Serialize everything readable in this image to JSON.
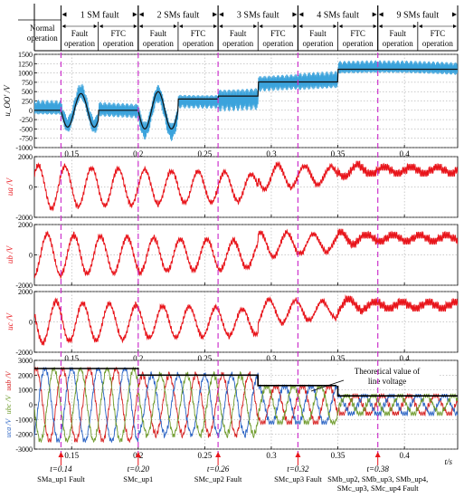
{
  "figure": {
    "phases": [
      {
        "id": "normal",
        "top": "Normal",
        "bottom": "operation",
        "x0": 0.122,
        "x1": 0.142
      },
      {
        "id": "fault1",
        "top": "Fault",
        "bottom": "operation",
        "x0": 0.142,
        "x1": 0.17
      },
      {
        "id": "ftc1",
        "top": "FTC",
        "bottom": "operation",
        "x0": 0.17,
        "x1": 0.2
      },
      {
        "id": "fault2",
        "top": "Fault",
        "bottom": "operation",
        "x0": 0.2,
        "x1": 0.23
      },
      {
        "id": "ftc2",
        "top": "FTC",
        "bottom": "operation",
        "x0": 0.23,
        "x1": 0.26
      },
      {
        "id": "fault3",
        "top": "Fault",
        "bottom": "operation",
        "x0": 0.26,
        "x1": 0.29
      },
      {
        "id": "ftc3",
        "top": "FTC",
        "bottom": "operation",
        "x0": 0.29,
        "x1": 0.32
      },
      {
        "id": "fault4",
        "top": "Fault",
        "bottom": "operation",
        "x0": 0.32,
        "x1": 0.35
      },
      {
        "id": "ftc4",
        "top": "FTC",
        "bottom": "operation",
        "x0": 0.35,
        "x1": 0.38
      },
      {
        "id": "fault9",
        "top": "Fault",
        "bottom": "operation",
        "x0": 0.38,
        "x1": 0.41
      },
      {
        "id": "ftc9",
        "top": "FTC",
        "bottom": "operation",
        "x0": 0.41,
        "x1": 0.44
      }
    ],
    "fault_groups": [
      {
        "label": "1 SM fault",
        "x0": 0.142,
        "x1": 0.2
      },
      {
        "label": "2 SMs fault",
        "x0": 0.2,
        "x1": 0.26
      },
      {
        "label": "3 SMs fault",
        "x0": 0.26,
        "x1": 0.32
      },
      {
        "label": "4 SMs fault",
        "x0": 0.32,
        "x1": 0.38
      },
      {
        "label": "9 SMs fault",
        "x0": 0.38,
        "x1": 0.44
      }
    ],
    "fault_event_lines": [
      0.142,
      0.2,
      0.26,
      0.32,
      0.38
    ],
    "ftc_lines": [
      0.17,
      0.23,
      0.29,
      0.35,
      0.41
    ],
    "annotations": [
      {
        "t": 0.14,
        "time": "t=0.14",
        "lines": [
          "SM",
          "a_up1",
          " Fault"
        ]
      },
      {
        "t": 0.2,
        "time": "t=0.20",
        "lines": [
          "SM",
          "c_up1",
          ""
        ]
      },
      {
        "t": 0.26,
        "time": "t=0.26",
        "lines": [
          "SM",
          "c_up2",
          " Fault"
        ]
      },
      {
        "t": 0.32,
        "time": "t=0.32",
        "lines": [
          "SM",
          "c_up3",
          " Fault"
        ]
      },
      {
        "t": 0.38,
        "time": "t=0.38",
        "lines": [
          "SM_b_up2, SM_b_up3, SM_b_up4,",
          "SM_c_up3, SM_c_up4 Fault"
        ]
      }
    ],
    "ann_text": {
      "t014": "t=0.14",
      "t020": "t=0.20",
      "t026": "t=0.26",
      "t032": "t=0.32",
      "t038": "t=0.38",
      "f014": "SMa_up1 Fault",
      "f020": "SMc_up1",
      "f026": "SMc_up2 Fault",
      "f032": "SMc_up3 Fault",
      "f038a": "SMb_up2, SMb_up3, SMb_up4,",
      "f038b": "SMc_up3, SMc_up4 Fault"
    },
    "theory_label": [
      "Theoretical value of",
      "line voltage"
    ],
    "time_unit": "t/s",
    "colors": {
      "uoo": "#3ba3dc",
      "avg": "#111111",
      "phase": "#e8141a",
      "uab": "#d62020",
      "ubc": "#2a63c4",
      "uca": "#6d9a2a",
      "dash": "#cc33cc",
      "arrow": "#e8141a"
    }
  },
  "chart_data": [
    {
      "type": "line",
      "id": "uoo",
      "ylabel": "u_OO' /V",
      "ylim": [
        -1000,
        1500
      ],
      "yticks": [
        -1000,
        -750,
        -500,
        -250,
        0,
        250,
        500,
        750,
        1000,
        1250,
        1500
      ],
      "xlim": [
        0.122,
        0.44
      ],
      "xticks": [
        0.15,
        0.2,
        0.25,
        0.3,
        0.35,
        0.4
      ],
      "xticklabels": [
        "0.15",
        "0.2",
        "0.25",
        "0.3",
        "0.35",
        "0.4"
      ],
      "series": [
        {
          "segments": [
            {
              "x0": 0.122,
              "x1": 0.142,
              "mean": 0,
              "osc": 0,
              "ripple": 280
            },
            {
              "x0": 0.142,
              "x1": 0.17,
              "mean": 0,
              "osc": 450,
              "ripple": 320
            },
            {
              "x0": 0.17,
              "x1": 0.2,
              "mean": 0,
              "osc": 0,
              "ripple": 280
            },
            {
              "x0": 0.2,
              "x1": 0.23,
              "mean": 0,
              "osc": 500,
              "ripple": 350
            },
            {
              "x0": 0.23,
              "x1": 0.26,
              "mean": 300,
              "osc": 0,
              "ripple": 260
            },
            {
              "x0": 0.26,
              "x1": 0.29,
              "mean": 380,
              "osc": 0,
              "ripple": 420
            },
            {
              "x0": 0.29,
              "x1": 0.32,
              "mean": 760,
              "osc": 0,
              "ripple": 300
            },
            {
              "x0": 0.32,
              "x1": 0.35,
              "mean": 760,
              "osc": 0,
              "ripple": 330
            },
            {
              "x0": 0.35,
              "x1": 0.38,
              "mean": 1100,
              "osc": 0,
              "ripple": 240
            },
            {
              "x0": 0.38,
              "x1": 0.44,
              "mean": 1100,
              "osc": 0,
              "ripple": 240
            }
          ]
        }
      ]
    },
    {
      "type": "line",
      "id": "ua",
      "ylabel": "u_a /V",
      "ylim": [
        -2000,
        2000
      ],
      "yticks": [
        -2000,
        0,
        2000
      ],
      "xlim": [
        0.122,
        0.44
      ],
      "xticks": [
        0.15,
        0.2,
        0.25,
        0.3,
        0.35,
        0.4
      ],
      "xticklabels": [],
      "series": [
        {
          "amp": [
            {
              "x": 0.122,
              "a": 1400
            },
            {
              "x": 0.142,
              "a": 1400
            },
            {
              "x": 0.142,
              "a": 1350
            },
            {
              "x": 0.2,
              "a": 1150
            },
            {
              "x": 0.26,
              "a": 1000
            },
            {
              "x": 0.32,
              "a": 700
            },
            {
              "x": 0.35,
              "a": 500
            },
            {
              "x": 0.38,
              "a": 200
            },
            {
              "x": 0.44,
              "a": 150
            }
          ],
          "offset": [
            {
              "x": 0.122,
              "o": 0
            },
            {
              "x": 0.29,
              "o": 0
            },
            {
              "x": 0.29,
              "o": 650
            },
            {
              "x": 0.35,
              "o": 800
            },
            {
              "x": 0.35,
              "o": 1100
            },
            {
              "x": 0.44,
              "o": 1100
            }
          ],
          "phase": 0
        }
      ]
    },
    {
      "type": "line",
      "id": "ub",
      "ylabel": "u_b /V",
      "ylim": [
        -2000,
        2000
      ],
      "yticks": [
        -2000,
        0,
        2000
      ],
      "xlim": [
        0.122,
        0.44
      ],
      "xticks": [
        0.15,
        0.2,
        0.25,
        0.3,
        0.35,
        0.4
      ],
      "xticklabels": [],
      "series": [
        {
          "amp": [
            {
              "x": 0.122,
              "a": 1400
            },
            {
              "x": 0.2,
              "a": 1150
            },
            {
              "x": 0.26,
              "a": 1000
            },
            {
              "x": 0.32,
              "a": 700
            },
            {
              "x": 0.35,
              "a": 500
            },
            {
              "x": 0.38,
              "a": 200
            },
            {
              "x": 0.44,
              "a": 150
            }
          ],
          "offset": [
            {
              "x": 0.122,
              "o": 0
            },
            {
              "x": 0.29,
              "o": 0
            },
            {
              "x": 0.29,
              "o": 650
            },
            {
              "x": 0.35,
              "o": 800
            },
            {
              "x": 0.35,
              "o": 1100
            },
            {
              "x": 0.44,
              "o": 1100
            }
          ],
          "phase": -2.094
        }
      ]
    },
    {
      "type": "line",
      "id": "uc",
      "ylabel": "u_c /V",
      "ylim": [
        -2000,
        2000
      ],
      "yticks": [
        -2000,
        0,
        2000
      ],
      "xlim": [
        0.122,
        0.44
      ],
      "xticks": [
        0.15,
        0.2,
        0.25,
        0.3,
        0.35,
        0.4
      ],
      "xticklabels": [
        "0.15",
        "0.2",
        "0.25",
        "0.3",
        "0.35",
        "0.4"
      ],
      "series": [
        {
          "amp": [
            {
              "x": 0.122,
              "a": 1400
            },
            {
              "x": 0.2,
              "a": 1100
            },
            {
              "x": 0.26,
              "a": 950
            },
            {
              "x": 0.32,
              "a": 700
            },
            {
              "x": 0.35,
              "a": 500
            },
            {
              "x": 0.38,
              "a": 200
            },
            {
              "x": 0.44,
              "a": 150
            }
          ],
          "offset": [
            {
              "x": 0.122,
              "o": 0
            },
            {
              "x": 0.29,
              "o": 0
            },
            {
              "x": 0.29,
              "o": 650
            },
            {
              "x": 0.35,
              "o": 800
            },
            {
              "x": 0.35,
              "o": 1100
            },
            {
              "x": 0.44,
              "o": 1100
            }
          ],
          "phase": 2.094
        }
      ]
    },
    {
      "type": "line",
      "id": "line",
      "ylabel": "u_ab /V, u_bc /V, u_ca /V",
      "ylim": [
        -3000,
        3000
      ],
      "yticks": [
        -3000,
        -2000,
        -1000,
        0,
        1000,
        2000,
        3000
      ],
      "xlim": [
        0.122,
        0.44
      ],
      "xticks": [
        0.15,
        0.2,
        0.25,
        0.3,
        0.35,
        0.4
      ],
      "xticklabels": [
        "0.15",
        "0.2",
        "0.25",
        "0.3",
        "0.35",
        "0.4"
      ],
      "series": [
        {
          "name": "u_ab",
          "phase": 0.524
        },
        {
          "name": "u_bc",
          "phase": -1.571
        },
        {
          "name": "u_ca",
          "phase": 2.618
        }
      ],
      "envelope": [
        {
          "x": 0.122,
          "a": 2450
        },
        {
          "x": 0.2,
          "a": 2450
        },
        {
          "x": 0.2,
          "a": 2000
        },
        {
          "x": 0.29,
          "a": 2000
        },
        {
          "x": 0.29,
          "a": 1300
        },
        {
          "x": 0.35,
          "a": 1300
        },
        {
          "x": 0.35,
          "a": 600
        },
        {
          "x": 0.44,
          "a": 600
        }
      ],
      "theory": [
        {
          "x": 0.122,
          "y": 2450
        },
        {
          "x": 0.2,
          "y": 2450
        },
        {
          "x": 0.2,
          "y": 2000
        },
        {
          "x": 0.29,
          "y": 2000
        },
        {
          "x": 0.29,
          "y": 1300
        },
        {
          "x": 0.35,
          "y": 1300
        },
        {
          "x": 0.35,
          "y": 600
        },
        {
          "x": 0.44,
          "y": 600
        }
      ]
    }
  ]
}
